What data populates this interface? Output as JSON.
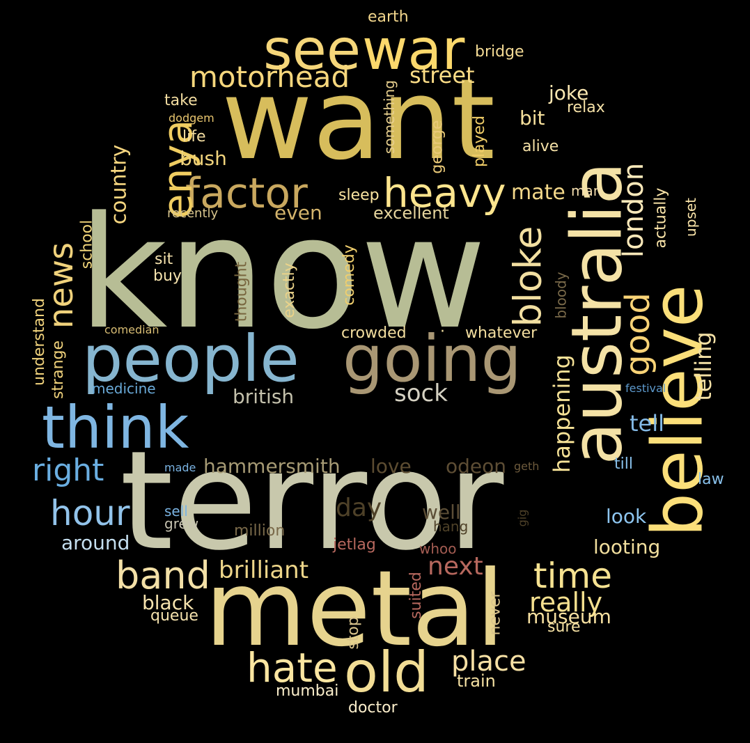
{
  "words": [
    {
      "text": "know",
      "color": "#b7bd95"
    },
    {
      "text": "terror",
      "color": "#c8c8ac"
    },
    {
      "text": "want",
      "color": "#d7bd5c"
    },
    {
      "text": "metal",
      "color": "#e6d38e"
    },
    {
      "text": "people",
      "color": "#86b5cf"
    },
    {
      "text": "going",
      "color": "#a99774"
    },
    {
      "text": "think",
      "color": "#7fb6e2"
    },
    {
      "text": "australia",
      "color": "#f4e2a6"
    },
    {
      "text": "believe",
      "color": "#fbdf7a"
    },
    {
      "text": "war",
      "color": "#fbd86c"
    },
    {
      "text": "see",
      "color": "#f5d67a"
    },
    {
      "text": "old",
      "color": "#f2dd95"
    },
    {
      "text": "factor",
      "color": "#c9a85f"
    },
    {
      "text": "heavy",
      "color": "#fde58e"
    },
    {
      "text": "enya",
      "color": "#f0cd61"
    },
    {
      "text": "motorhead",
      "color": "#f6d77d"
    },
    {
      "text": "hate",
      "color": "#fbe6a1"
    },
    {
      "text": "band",
      "color": "#f3e0a7"
    },
    {
      "text": "time",
      "color": "#f6e291"
    },
    {
      "text": "bloke",
      "color": "#f2dfa1"
    },
    {
      "text": "news",
      "color": "#f0d27c"
    },
    {
      "text": "hour",
      "color": "#92c3ea"
    },
    {
      "text": "right",
      "color": "#6aaee1"
    },
    {
      "text": "london",
      "color": "#fbe9ba"
    },
    {
      "text": "good",
      "color": "#f8d377"
    },
    {
      "text": "place",
      "color": "#f6e0a4"
    },
    {
      "text": "brilliant",
      "color": "#eed68a"
    },
    {
      "text": "next",
      "color": "#b7685e"
    },
    {
      "text": "really",
      "color": "#f5e08f"
    },
    {
      "text": "street",
      "color": "#fbdc86"
    },
    {
      "text": "sock",
      "color": "#d5d1c2"
    },
    {
      "text": "british",
      "color": "#c4c1ac"
    },
    {
      "text": "hammersmith",
      "color": "#a69a74"
    },
    {
      "text": "day",
      "color": "#4e4128"
    },
    {
      "text": "love",
      "color": "#5c4c31"
    },
    {
      "text": "odeon",
      "color": "#5d4d34"
    },
    {
      "text": "well",
      "color": "#5c4e36"
    },
    {
      "text": "museum",
      "color": "#f6e0a0"
    },
    {
      "text": "tell",
      "color": "#84b9e5"
    },
    {
      "text": "telling",
      "color": "#f4e1a6"
    },
    {
      "text": "happening",
      "color": "#f6e297"
    },
    {
      "text": "country",
      "color": "#f6d680"
    },
    {
      "text": "mate",
      "color": "#f3d88a"
    },
    {
      "text": "bit",
      "color": "#f6e09c"
    },
    {
      "text": "joke",
      "color": "#fbe8b2"
    },
    {
      "text": "even",
      "color": "#d4b46c"
    },
    {
      "text": "excellent",
      "color": "#e5d49d"
    },
    {
      "text": "bush",
      "color": "#f0d37c"
    },
    {
      "text": "looting",
      "color": "#f2df9e"
    },
    {
      "text": "look",
      "color": "#8ec6f0"
    },
    {
      "text": "around",
      "color": "#c5dff0"
    },
    {
      "text": "black",
      "color": "#f6e3ae"
    },
    {
      "text": "queue",
      "color": "#f6e3ae"
    },
    {
      "text": "mumbai",
      "color": "#fbeecb"
    },
    {
      "text": "doctor",
      "color": "#fbeecb"
    },
    {
      "text": "train",
      "color": "#f5e1a3"
    },
    {
      "text": "sure",
      "color": "#f5e1a3"
    },
    {
      "text": "bridge",
      "color": "#f5dc96"
    },
    {
      "text": "earth",
      "color": "#f2d68c"
    },
    {
      "text": "take",
      "color": "#f3dda1"
    },
    {
      "text": "dodgem",
      "color": "#e9c66f"
    },
    {
      "text": "life",
      "color": "#f3dda1"
    },
    {
      "text": "relax",
      "color": "#f5e1a7"
    },
    {
      "text": "alive",
      "color": "#f5e1a7"
    },
    {
      "text": "played",
      "color": "#f0cd68"
    },
    {
      "text": "george",
      "color": "#e9c978"
    },
    {
      "text": "something",
      "color": "#e7cf8e"
    },
    {
      "text": "sleep",
      "color": "#fbe5a1"
    },
    {
      "text": "man",
      "color": "#f4deae"
    },
    {
      "text": "recently",
      "color": "#d8c58d"
    },
    {
      "text": "school",
      "color": "#f1d57a"
    },
    {
      "text": "sit",
      "color": "#f6e3ae"
    },
    {
      "text": "buy",
      "color": "#f6e3ae"
    },
    {
      "text": "thought",
      "color": "#78663f"
    },
    {
      "text": "exactly",
      "color": "#ebd38a"
    },
    {
      "text": "comedy",
      "color": "#f0cf6e"
    },
    {
      "text": "bloody",
      "color": "#7a6a4a"
    },
    {
      "text": "crowded",
      "color": "#f4dfa0"
    },
    {
      "text": "whatever",
      "color": "#f4dfa0"
    },
    {
      "text": "upset",
      "color": "#fbe5a9"
    },
    {
      "text": "actually",
      "color": "#fbe5a9"
    },
    {
      "text": "understand",
      "color": "#f0d27c"
    },
    {
      "text": "strange",
      "color": "#f0d27c"
    },
    {
      "text": "comedian",
      "color": "#d8bd74"
    },
    {
      "text": "medicine",
      "color": "#6aaad8"
    },
    {
      "text": "festival",
      "color": "#5d99cc"
    },
    {
      "text": "made",
      "color": "#7ab3e2"
    },
    {
      "text": "geth",
      "color": "#6d5a3c"
    },
    {
      "text": "till",
      "color": "#88c0ea"
    },
    {
      "text": "law",
      "color": "#88c0ea"
    },
    {
      "text": "sell",
      "color": "#7ab3e2"
    },
    {
      "text": "grew",
      "color": "#c8c4b2"
    },
    {
      "text": "hang",
      "color": "#4e4128"
    },
    {
      "text": "gig",
      "color": "#4e4128"
    },
    {
      "text": "million",
      "color": "#7a6a4a"
    },
    {
      "text": "jetlag",
      "color": "#b7685e"
    },
    {
      "text": "whoo",
      "color": "#a35c52"
    },
    {
      "text": "suited",
      "color": "#b7685e"
    },
    {
      "text": "stop",
      "color": "#d9c48c"
    },
    {
      "text": "never",
      "color": "#d9c48c"
    },
    {
      "text": "·",
      "color": "#f4dfa0"
    }
  ]
}
